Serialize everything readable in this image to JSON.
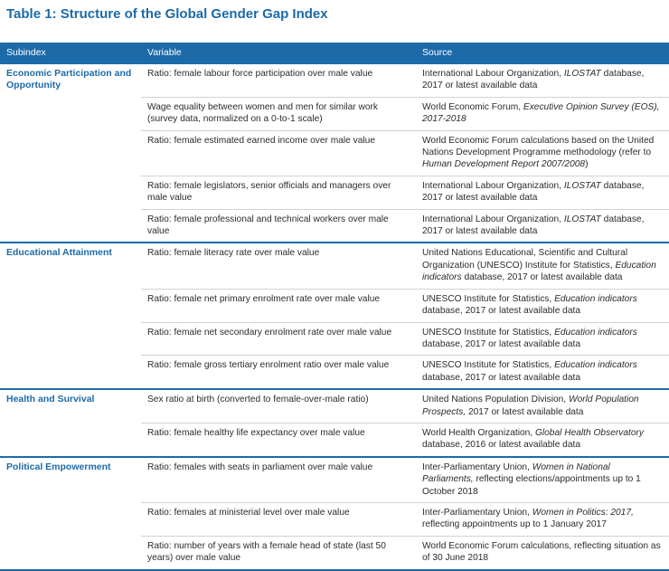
{
  "title": "Table 1: Structure of the Global Gender Gap Index",
  "headers": {
    "subindex": "Subindex",
    "variable": "Variable",
    "source": "Source"
  },
  "groups": [
    {
      "subindex": "Economic Participation and Opportunity",
      "rows": [
        {
          "variable": "Ratio: female labour force participation over male value",
          "source": [
            {
              "t": "International Labour Organization, "
            },
            {
              "t": "ILOSTAT",
              "i": true
            },
            {
              "t": " database, 2017 or latest available data"
            }
          ]
        },
        {
          "variable": "Wage equality between women and men for similar work (survey data, normalized on a 0-to-1 scale)",
          "source": [
            {
              "t": "World Economic Forum, "
            },
            {
              "t": "Executive Opinion Survey (EOS), 2017-2018",
              "i": true
            }
          ]
        },
        {
          "variable": "Ratio: female estimated earned income over male value",
          "source": [
            {
              "t": "World Economic Forum calculations based on the United Nations Development Programme methodology (refer to "
            },
            {
              "t": "Human Development Report 2007/2008",
              "i": true
            },
            {
              "t": ")"
            }
          ]
        },
        {
          "variable": "Ratio: female legislators, senior officials and managers over male value",
          "source": [
            {
              "t": "International Labour Organization, "
            },
            {
              "t": "ILOSTAT",
              "i": true
            },
            {
              "t": " database, 2017 or latest available data"
            }
          ]
        },
        {
          "variable": "Ratio: female professional and technical workers over male value",
          "source": [
            {
              "t": "International Labour Organization, "
            },
            {
              "t": "ILOSTAT",
              "i": true
            },
            {
              "t": " database, 2017 or latest available data"
            }
          ]
        }
      ]
    },
    {
      "subindex": "Educational Attainment",
      "rows": [
        {
          "variable": "Ratio: female literacy rate over male value",
          "source": [
            {
              "t": "United Nations Educational, Scientific and Cultural Organization (UNESCO) Institute for Statistics, "
            },
            {
              "t": "Education indicators",
              "i": true
            },
            {
              "t": " database, 2017 or latest available data"
            }
          ]
        },
        {
          "variable": "Ratio: female net primary enrolment rate over male value",
          "source": [
            {
              "t": "UNESCO Institute for Statistics, "
            },
            {
              "t": "Education indicators",
              "i": true
            },
            {
              "t": " database, 2017 or latest available data"
            }
          ]
        },
        {
          "variable": "Ratio: female net secondary enrolment rate over male value",
          "source": [
            {
              "t": "UNESCO Institute for Statistics, "
            },
            {
              "t": "Education indicators",
              "i": true
            },
            {
              "t": " database, 2017 or latest available data"
            }
          ]
        },
        {
          "variable": "Ratio: female gross tertiary enrolment ratio over male value",
          "source": [
            {
              "t": "UNESCO Institute for Statistics, "
            },
            {
              "t": "Education indicators",
              "i": true
            },
            {
              "t": " database, 2017 or latest available data"
            }
          ]
        }
      ]
    },
    {
      "subindex": "Health and Survival",
      "rows": [
        {
          "variable": "Sex ratio at birth (converted to female-over-male ratio)",
          "source": [
            {
              "t": "United Nations Population Division, "
            },
            {
              "t": "World Population Prospects,",
              "i": true
            },
            {
              "t": " 2017 or latest available data"
            }
          ]
        },
        {
          "variable": "Ratio: female healthy life expectancy over male value",
          "source": [
            {
              "t": "World Health Organization, "
            },
            {
              "t": "Global Health Observatory",
              "i": true
            },
            {
              "t": " database, 2016 or latest available data"
            }
          ]
        }
      ]
    },
    {
      "subindex": "Political Empowerment",
      "rows": [
        {
          "variable": "Ratio: females with seats in parliament over male value",
          "source": [
            {
              "t": "Inter-Parliamentary Union, "
            },
            {
              "t": "Women in National Parliaments,",
              "i": true
            },
            {
              "t": " reflecting elections/appointments up to 1 October 2018"
            }
          ]
        },
        {
          "variable": "Ratio: females at ministerial level over male value",
          "source": [
            {
              "t": "Inter-Parliamentary Union, "
            },
            {
              "t": "Women in Politics: 2017,",
              "i": true
            },
            {
              "t": " reflecting appointments up to 1 January 2017"
            }
          ]
        },
        {
          "variable": "Ratio: number of years with a female head of state (last 50 years) over male value",
          "source": [
            {
              "t": "World Economic Forum calculations, reflecting situation as of 30 June 2018"
            }
          ]
        }
      ]
    }
  ]
}
